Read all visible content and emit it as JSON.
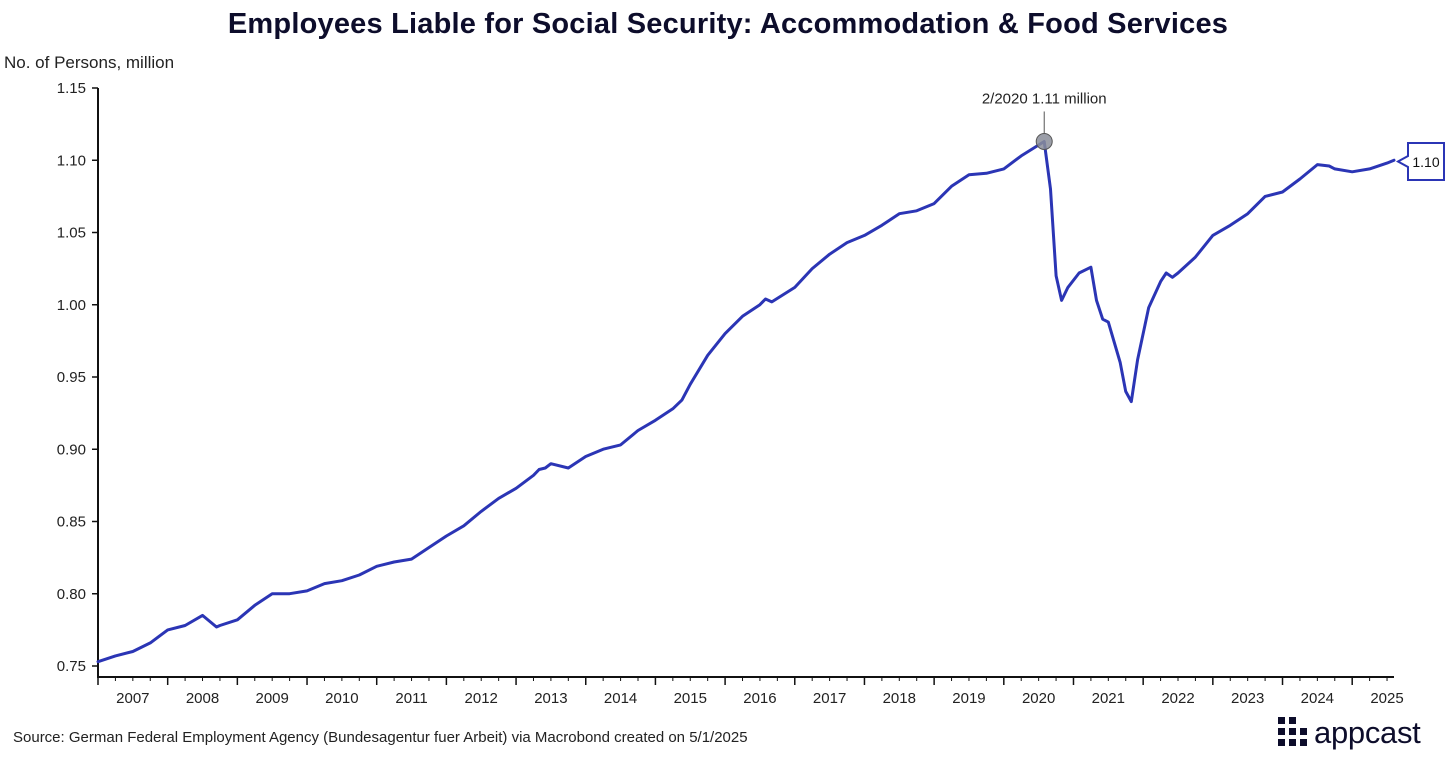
{
  "chart_data": {
    "type": "line",
    "title": "Employees Liable for Social Security: Accommodation & Food Services",
    "ylabel": "No. of Persons, million",
    "xlabel": "",
    "ylim": [
      0.75,
      1.15
    ],
    "yticks": [
      "0.75",
      "0.80",
      "0.85",
      "0.90",
      "0.95",
      "1.00",
      "1.05",
      "1.10",
      "1.15"
    ],
    "xlim": [
      2006.5,
      2025.1
    ],
    "xticks": [
      "2007",
      "2008",
      "2009",
      "2010",
      "2011",
      "2012",
      "2013",
      "2014",
      "2015",
      "2016",
      "2017",
      "2018",
      "2019",
      "2020",
      "2021",
      "2022",
      "2023",
      "2024",
      "2025"
    ],
    "grid": false,
    "series": [
      {
        "name": "Employees Liable for Social Security",
        "color": "#2b35b5",
        "x": [
          2006.5,
          2006.75,
          2007.0,
          2007.25,
          2007.5,
          2007.75,
          2008.0,
          2008.2,
          2008.25,
          2008.5,
          2008.75,
          2009.0,
          2009.25,
          2009.5,
          2009.75,
          2010.0,
          2010.25,
          2010.5,
          2010.75,
          2011.0,
          2011.25,
          2011.5,
          2011.75,
          2012.0,
          2012.25,
          2012.5,
          2012.75,
          2012.83,
          2012.92,
          2013.0,
          2013.25,
          2013.5,
          2013.75,
          2014.0,
          2014.25,
          2014.5,
          2014.75,
          2014.88,
          2015.0,
          2015.25,
          2015.5,
          2015.75,
          2016.0,
          2016.08,
          2016.17,
          2016.5,
          2016.75,
          2017.0,
          2017.25,
          2017.5,
          2017.75,
          2018.0,
          2018.25,
          2018.5,
          2018.75,
          2019.0,
          2019.25,
          2019.5,
          2019.75,
          2020.08,
          2020.17,
          2020.25,
          2020.33,
          2020.42,
          2020.58,
          2020.75,
          2020.83,
          2020.92,
          2021.0,
          2021.17,
          2021.25,
          2021.33,
          2021.42,
          2021.58,
          2021.75,
          2021.83,
          2021.92,
          2022.0,
          2022.25,
          2022.5,
          2022.75,
          2023.0,
          2023.25,
          2023.5,
          2023.75,
          2024.0,
          2024.17,
          2024.25,
          2024.5,
          2024.75,
          2025.0,
          2025.1
        ],
        "values": [
          0.753,
          0.757,
          0.76,
          0.766,
          0.775,
          0.778,
          0.785,
          0.777,
          0.778,
          0.782,
          0.792,
          0.8,
          0.8,
          0.802,
          0.807,
          0.809,
          0.813,
          0.819,
          0.822,
          0.824,
          0.832,
          0.84,
          0.847,
          0.857,
          0.866,
          0.873,
          0.882,
          0.886,
          0.887,
          0.89,
          0.887,
          0.895,
          0.9,
          0.903,
          0.913,
          0.92,
          0.928,
          0.934,
          0.945,
          0.965,
          0.98,
          0.992,
          1.0,
          1.004,
          1.002,
          1.012,
          1.025,
          1.035,
          1.043,
          1.048,
          1.055,
          1.063,
          1.065,
          1.07,
          1.082,
          1.09,
          1.091,
          1.094,
          1.103,
          1.113,
          1.08,
          1.02,
          1.003,
          1.012,
          1.022,
          1.026,
          1.003,
          0.99,
          0.988,
          0.96,
          0.94,
          0.933,
          0.962,
          0.998,
          1.016,
          1.022,
          1.019,
          1.022,
          1.033,
          1.048,
          1.055,
          1.063,
          1.075,
          1.078,
          1.087,
          1.097,
          1.096,
          1.094,
          1.092,
          1.094,
          1.098,
          1.1
        ]
      }
    ],
    "annotations": [
      {
        "label": "2/2020 1.11 million",
        "x": 2020.08,
        "y": 1.113
      }
    ],
    "last_value_label": "1.10"
  },
  "footer": {
    "source": "Source: German Federal Employment Agency (Bundesagentur fuer Arbeit) via Macrobond created on 5/1/2025",
    "logo_text": "appcast"
  }
}
